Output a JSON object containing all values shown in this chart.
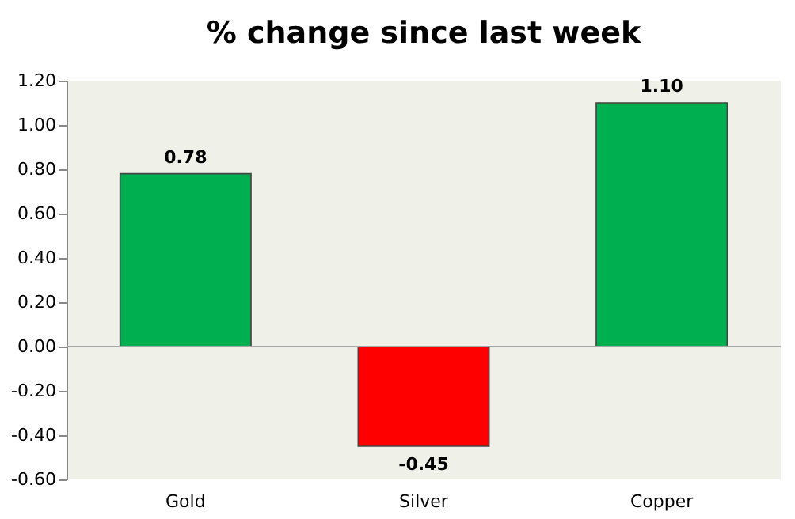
{
  "chart_data": {
    "type": "bar",
    "title": "% change since last week",
    "categories": [
      "Gold",
      "Silver",
      "Copper"
    ],
    "values": [
      0.78,
      -0.45,
      1.1
    ],
    "colors": [
      "#00b050",
      "#ff0000",
      "#00b050"
    ],
    "value_labels": [
      "0.78",
      "-0.45",
      "1.10"
    ],
    "ylim": [
      -0.6,
      1.2
    ],
    "yticks": [
      {
        "value": -0.6,
        "label": "-0.60"
      },
      {
        "value": -0.4,
        "label": "-0.40"
      },
      {
        "value": -0.2,
        "label": "-0.20"
      },
      {
        "value": 0,
        "label": "0.00"
      },
      {
        "value": 0.2,
        "label": "0.20"
      },
      {
        "value": 0.4,
        "label": "0.40"
      },
      {
        "value": 0.6,
        "label": "0.60"
      },
      {
        "value": 0.8,
        "label": "0.80"
      },
      {
        "value": 1.0,
        "label": "1.00"
      },
      {
        "value": 1.2,
        "label": "1.20"
      }
    ],
    "ref_lines": [
      {
        "axis": "y",
        "value": 0,
        "color": "#a6a6a6"
      }
    ],
    "grid": false,
    "legend": false
  }
}
